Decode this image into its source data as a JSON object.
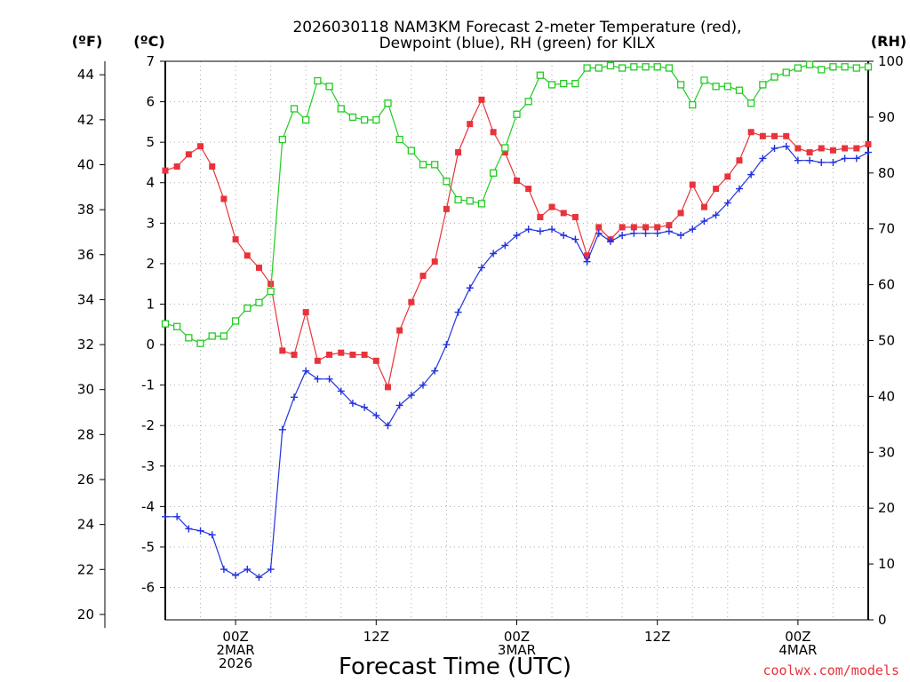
{
  "chart_data": {
    "type": "line",
    "title_line1": "2026030118 NAM3KM Forecast 2-meter Temperature (red),",
    "title_line2": "Dewpoint (blue), RH (green) for KILX",
    "xlabel": "Forecast Time (UTC)",
    "credit": "coolwx.com/models",
    "units": {
      "fahrenheit": "(ºF)",
      "celsius": "(ºC)",
      "rh": "(RH)"
    },
    "x_ticks": [
      {
        "hour": 6,
        "label1": "00Z",
        "label2": "2MAR",
        "label3": "2026"
      },
      {
        "hour": 18,
        "label1": "12Z",
        "label2": "",
        "label3": ""
      },
      {
        "hour": 30,
        "label1": "00Z",
        "label2": "3MAR",
        "label3": ""
      },
      {
        "hour": 42,
        "label1": "12Z",
        "label2": "",
        "label3": ""
      },
      {
        "hour": 54,
        "label1": "00Z",
        "label2": "4MAR",
        "label3": ""
      }
    ],
    "x_range_hours": [
      0,
      60
    ],
    "celsius_range": [
      -6.8,
      7
    ],
    "celsius_ticks": [
      "-6",
      "-5",
      "-4",
      "-3",
      "-2",
      "-1",
      "0",
      "1",
      "2",
      "3",
      "4",
      "5",
      "6",
      "7"
    ],
    "fahrenheit_ticks": [
      "20",
      "22",
      "24",
      "26",
      "28",
      "30",
      "32",
      "34",
      "36",
      "38",
      "40",
      "42",
      "44"
    ],
    "rh_range": [
      0,
      100
    ],
    "rh_ticks": [
      "0",
      "10",
      "20",
      "30",
      "40",
      "50",
      "60",
      "70",
      "80",
      "90",
      "100"
    ],
    "grid": true,
    "series": [
      {
        "key": "temperature",
        "color": "#e8333b",
        "marker": "filled-square",
        "axis": "celsius",
        "values": [
          4.3,
          4.4,
          4.7,
          4.9,
          4.4,
          3.6,
          2.6,
          2.2,
          1.9,
          1.5,
          -0.15,
          -0.25,
          0.8,
          -0.4,
          -0.25,
          -0.2,
          -0.25,
          -0.25,
          -0.4,
          -1.05,
          0.35,
          1.05,
          1.7,
          2.05,
          3.35,
          4.75,
          5.45,
          6.05,
          5.25,
          4.75,
          4.05,
          3.85,
          3.15,
          3.4,
          3.25,
          3.15,
          2.2,
          2.9,
          2.6,
          2.9,
          2.9,
          2.9,
          2.9,
          2.95,
          3.25,
          3.95,
          3.4,
          3.85,
          4.15,
          4.55,
          5.25,
          5.15,
          5.15,
          5.15,
          4.85,
          4.75,
          4.85,
          4.8,
          4.85,
          4.85,
          4.95
        ]
      },
      {
        "key": "dewpoint",
        "color": "#2233dd",
        "marker": "plus",
        "axis": "celsius",
        "values": [
          -4.25,
          -4.25,
          -4.55,
          -4.6,
          -4.7,
          -5.55,
          -5.7,
          -5.55,
          -5.75,
          -5.55,
          -2.1,
          -1.3,
          -0.65,
          -0.85,
          -0.85,
          -1.15,
          -1.45,
          -1.55,
          -1.75,
          -2.0,
          -1.5,
          -1.25,
          -1.0,
          -0.65,
          0.0,
          0.8,
          1.4,
          1.9,
          2.25,
          2.45,
          2.7,
          2.85,
          2.8,
          2.85,
          2.7,
          2.6,
          2.05,
          2.75,
          2.55,
          2.7,
          2.75,
          2.75,
          2.75,
          2.8,
          2.7,
          2.85,
          3.05,
          3.2,
          3.5,
          3.85,
          4.2,
          4.6,
          4.85,
          4.9,
          4.55,
          4.55,
          4.5,
          4.5,
          4.6,
          4.6,
          4.75
        ]
      },
      {
        "key": "rh",
        "color": "#22cc22",
        "marker": "open-square",
        "axis": "rh",
        "values": [
          53,
          52.5,
          50.5,
          49.5,
          50.8,
          50.8,
          53.5,
          55.8,
          56.8,
          58.8,
          86,
          91.5,
          89.5,
          96.5,
          95.5,
          91.5,
          90,
          89.5,
          89.5,
          92.5,
          86,
          84,
          81.5,
          81.5,
          78.5,
          75.2,
          75,
          74.5,
          80,
          84.5,
          90.5,
          92.8,
          97.5,
          95.8,
          96,
          96,
          98.8,
          98.8,
          99.2,
          98.8,
          99,
          99,
          99,
          98.8,
          95.8,
          92.2,
          96.6,
          95.5,
          95.5,
          94.8,
          92.5,
          95.8,
          97.2,
          98,
          98.8,
          99.4,
          98.5,
          99,
          99,
          98.8,
          99
        ]
      }
    ]
  }
}
